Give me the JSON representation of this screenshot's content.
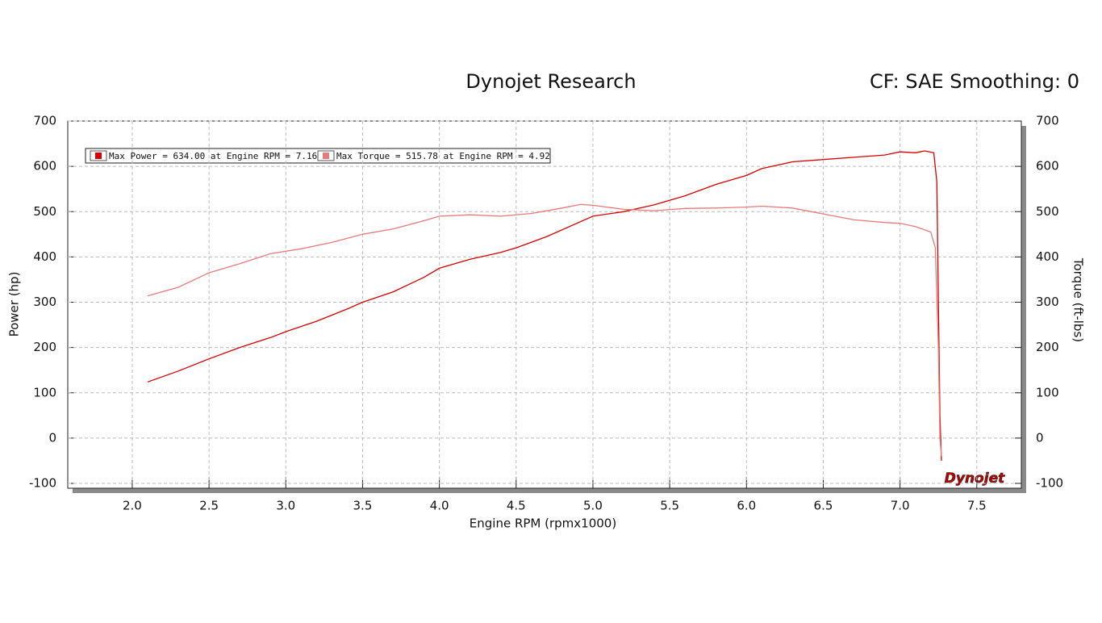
{
  "chart_data": {
    "type": "line",
    "title": "Dynojet Research",
    "subtitle": "CF: SAE Smoothing: 0",
    "x_label": "Engine RPM (rpmx1000)",
    "y_label": "Power (hp)",
    "y2_label": "Torque (ft-lbs)",
    "logo": "Dynojet",
    "xlim": [
      1.58,
      7.79
    ],
    "xticks": [
      {
        "value": 2,
        "label": "2.0"
      },
      {
        "value": 2.5,
        "label": "2.5"
      },
      {
        "value": 3,
        "label": "3.0"
      },
      {
        "value": 3.5,
        "label": "3.5"
      },
      {
        "value": 4,
        "label": "4.0"
      },
      {
        "value": 4.5,
        "label": "4.5"
      },
      {
        "value": 5,
        "label": "5.0"
      },
      {
        "value": 5.5,
        "label": "5.5"
      },
      {
        "value": 6,
        "label": "6.0"
      },
      {
        "value": 6.5,
        "label": "6.5"
      },
      {
        "value": 7,
        "label": "7.0"
      },
      {
        "value": 7.5,
        "label": "7.5"
      }
    ],
    "ylim": [
      -100,
      700
    ],
    "yticks": [
      -100,
      0,
      100,
      200,
      300,
      400,
      500,
      600,
      700
    ],
    "y2lim": [
      -100,
      700
    ],
    "y2ticks": [
      -100,
      0,
      100,
      200,
      300,
      400,
      500,
      600,
      700
    ],
    "grid": true,
    "series": [
      {
        "name": "Max Power = 634.00 at Engine RPM = 7.16",
        "color": "#d40000",
        "x": [
          2.1,
          2.3,
          2.5,
          2.7,
          2.9,
          3.0,
          3.2,
          3.4,
          3.5,
          3.7,
          3.9,
          4.0,
          4.2,
          4.4,
          4.5,
          4.7,
          4.9,
          5.0,
          5.2,
          5.4,
          5.6,
          5.8,
          6.0,
          6.1,
          6.3,
          6.5,
          6.7,
          6.9,
          7.0,
          7.1,
          7.16,
          7.22,
          7.24,
          7.25,
          7.26,
          7.27
        ],
        "values": [
          124,
          148,
          175,
          200,
          222,
          235,
          258,
          285,
          300,
          323,
          355,
          375,
          395,
          410,
          420,
          445,
          475,
          490,
          500,
          515,
          535,
          560,
          580,
          595,
          610,
          615,
          620,
          625,
          632,
          630,
          634,
          630,
          565,
          300,
          50,
          -50
        ]
      },
      {
        "name": "Max Torque = 515.78 at Engine RPM = 4.92",
        "color": "#e87a7a",
        "axis": "y2",
        "x": [
          2.1,
          2.3,
          2.5,
          2.7,
          2.9,
          3.1,
          3.3,
          3.5,
          3.7,
          3.9,
          4.0,
          4.2,
          4.4,
          4.6,
          4.8,
          4.92,
          5.0,
          5.2,
          5.4,
          5.6,
          5.8,
          6.0,
          6.1,
          6.3,
          6.5,
          6.7,
          6.9,
          7.0,
          7.1,
          7.2,
          7.23,
          7.25,
          7.26,
          7.27
        ],
        "values": [
          314,
          333,
          365,
          385,
          407,
          418,
          432,
          450,
          462,
          480,
          490,
          493,
          490,
          496,
          508,
          516,
          514,
          505,
          502,
          507,
          508,
          510,
          512,
          508,
          495,
          482,
          476,
          474,
          467,
          455,
          420,
          200,
          0,
          -40
        ]
      }
    ]
  }
}
